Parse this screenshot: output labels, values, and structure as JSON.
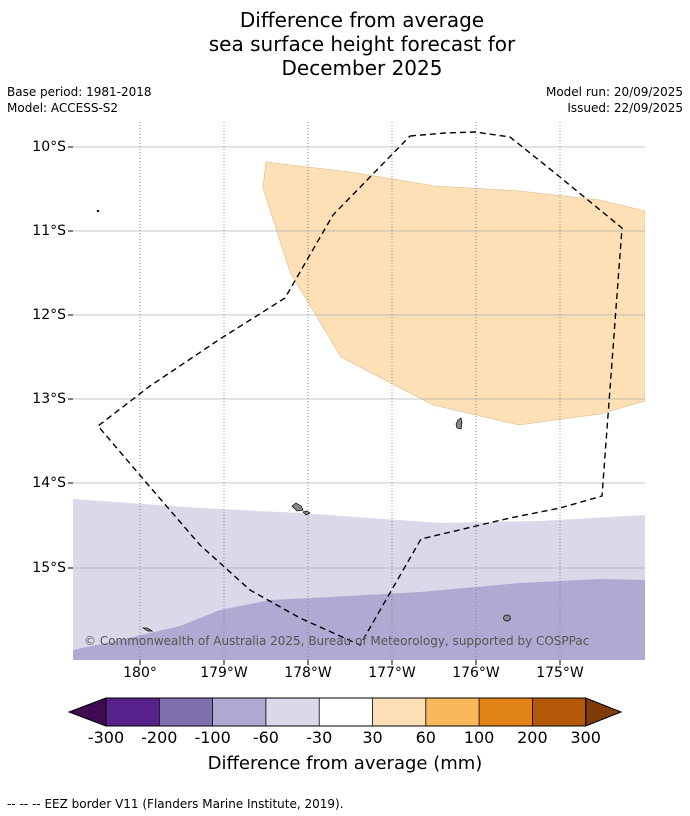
{
  "title": {
    "line1": "Difference from average",
    "line2": "sea surface height forecast for",
    "line3": "December 2025"
  },
  "meta": {
    "base_period": "Base period: 1981-2018",
    "model": "Model: ACCESS-S2",
    "model_run": "Model run: 20/09/2025",
    "issued": "Issued: 22/09/2025"
  },
  "map": {
    "lat_labels": [
      "10°S",
      "11°S",
      "12°S",
      "13°S",
      "14°S",
      "15°S"
    ],
    "lon_labels": [
      "180°",
      "179°W",
      "178°W",
      "177°W",
      "176°W",
      "175°W"
    ],
    "copyright": "© Commonwealth of Australia 2025, Bureau of Meteorology, supported by COSPPac",
    "colors": {
      "ocean_default": "#ffffff",
      "band_30_60": "#fde0b5",
      "band_neg60_neg30": "#d9d9ea",
      "band_neg100_neg60": "#b1a9d1",
      "land": "#888888",
      "gridline": "#b0b0b0",
      "eez_border": "#000000"
    }
  },
  "colorbar": {
    "title": "Difference from average (mm)",
    "ticks": [
      "-300",
      "-200",
      "-100",
      "-60",
      "-30",
      "30",
      "60",
      "100",
      "200",
      "300"
    ],
    "colors": [
      "#3f0b53",
      "#58228c",
      "#8070ad",
      "#b1a9d1",
      "#d9d9ea",
      "#ffffff",
      "#fde0b5",
      "#fbb75c",
      "#e28317",
      "#b35806",
      "#7f3b08"
    ]
  },
  "legend": {
    "line_symbol": "-- -- --",
    "text": "EEZ border V11 (Flanders Marine Institute, 2019)."
  }
}
